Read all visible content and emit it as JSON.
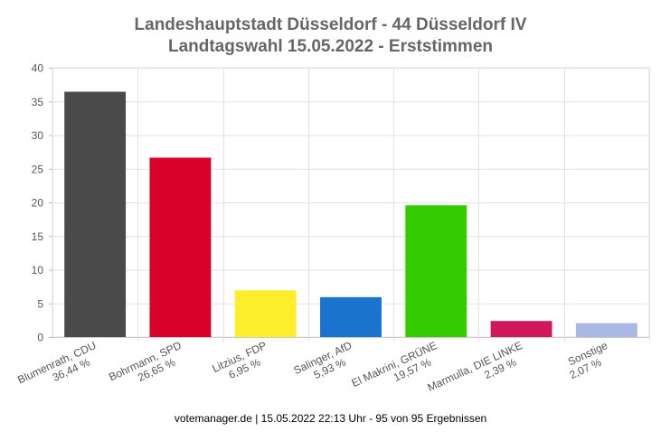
{
  "chart_data": {
    "type": "bar",
    "title": "Landeshauptstadt Düsseldorf - 44 Düsseldorf IV",
    "subtitle": "Landtagswahl 15.05.2022  - Erststimmen",
    "categories": [
      {
        "name": "Blumenrath, CDU",
        "pct": "36,44 %"
      },
      {
        "name": "Bohrmann, SPD",
        "pct": "26,65 %"
      },
      {
        "name": "Litzius, FDP",
        "pct": "6,95 %"
      },
      {
        "name": "Salinger, AfD",
        "pct": "5,93 %"
      },
      {
        "name": "El Makrini, GRÜNE",
        "pct": "19,57 %"
      },
      {
        "name": "Marmulla, DIE LINKE",
        "pct": "2,39 %"
      },
      {
        "name": "Sonstige",
        "pct": "2,07 %"
      }
    ],
    "values": [
      36.44,
      26.65,
      6.95,
      5.93,
      19.57,
      2.39,
      2.07
    ],
    "colors": [
      "#4a4a4a",
      "#d9002b",
      "#fcee2c",
      "#1a73cc",
      "#33cc00",
      "#d0175a",
      "#a9b9e4"
    ],
    "ylim": [
      0,
      40
    ],
    "yticks": [
      0,
      5,
      10,
      15,
      20,
      25,
      30,
      35,
      40
    ],
    "grid": true
  },
  "footer": "votemanager.de | 15.05.2022 22:13 Uhr - 95 von 95 Ergebnissen"
}
